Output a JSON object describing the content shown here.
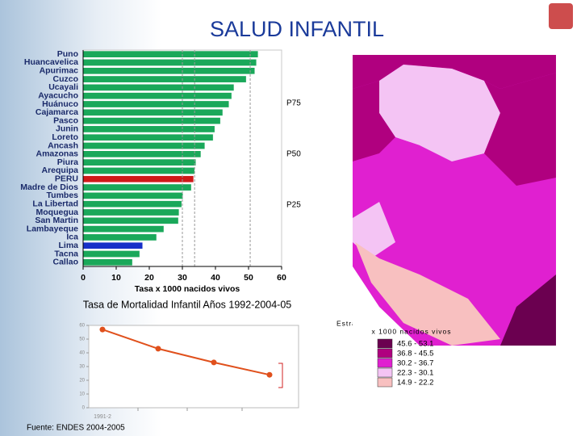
{
  "title": "SALUD INFANTIL",
  "source": "Fuente: ENDES 2004-2005",
  "map_legend": {
    "title": "Estratificación según mortalidad infantil",
    "subtitle": "x 1000 nacidos vivos",
    "items": [
      {
        "label": "45.6 - 53.1",
        "color": "#6b0050"
      },
      {
        "label": "36.8 - 45.5",
        "color": "#b0007f"
      },
      {
        "label": "30.2 - 36.7",
        "color": "#e020d0"
      },
      {
        "label": "22.3 - 30.1",
        "color": "#f4c4f4"
      },
      {
        "label": "14.9 - 22.2",
        "color": "#f8c0c0"
      }
    ]
  },
  "chart_data": [
    {
      "type": "bar",
      "orientation": "horizontal",
      "categories": [
        "Puno",
        "Huancavelica",
        "Apurimac",
        "Cuzco",
        "Ucayali",
        "Ayacucho",
        "Huánuco",
        "Cajamarca",
        "Pasco",
        "Junin",
        "Loreto",
        "Ancash",
        "Amazonas",
        "Piura",
        "Arequipa",
        "PERU",
        "Madre de Dios",
        "Tumbes",
        "La Libertad",
        "Moquegua",
        "San Martin",
        "Lambayeque",
        "Ica",
        "Lima",
        "Tacna",
        "Callao"
      ],
      "values": [
        52.9,
        52.4,
        51.9,
        49.3,
        45.6,
        44.9,
        44.1,
        42.2,
        41.5,
        39.8,
        39.3,
        36.8,
        35.6,
        34.1,
        33.7,
        33.4,
        32.7,
        30.2,
        29.8,
        29.0,
        28.8,
        24.4,
        22.2,
        18.0,
        17.1,
        14.9
      ],
      "colors": [
        "#1aa85a",
        "#1aa85a",
        "#1aa85a",
        "#1aa85a",
        "#1aa85a",
        "#1aa85a",
        "#1aa85a",
        "#1aa85a",
        "#1aa85a",
        "#1aa85a",
        "#1aa85a",
        "#1aa85a",
        "#1aa85a",
        "#1aa85a",
        "#1aa85a",
        "#d01818",
        "#1aa85a",
        "#1aa85a",
        "#1aa85a",
        "#1aa85a",
        "#1aa85a",
        "#1aa85a",
        "#1aa85a",
        "#1830c8",
        "#1aa85a",
        "#1aa85a"
      ],
      "xlim": [
        0,
        60
      ],
      "xticks": [
        0,
        10,
        20,
        30,
        40,
        50,
        60
      ],
      "xlabel": "Tasa x 1000 nacidos vivos",
      "reference_lines": [
        {
          "label": "P75",
          "value": 50.5
        },
        {
          "label": "P50",
          "value": 33.7
        },
        {
          "label": "P25",
          "value": 30.0
        }
      ]
    },
    {
      "type": "line",
      "title": "Tasa de Mortalidad Infantil Años 1992-2004-05",
      "categories": [
        "1991-2",
        null,
        null,
        null
      ],
      "values": [
        57,
        43,
        33,
        24
      ],
      "color": "#e0501c",
      "ylim": [
        0,
        60
      ],
      "yticks": [
        0,
        10,
        20,
        30,
        40,
        50,
        60
      ]
    }
  ]
}
